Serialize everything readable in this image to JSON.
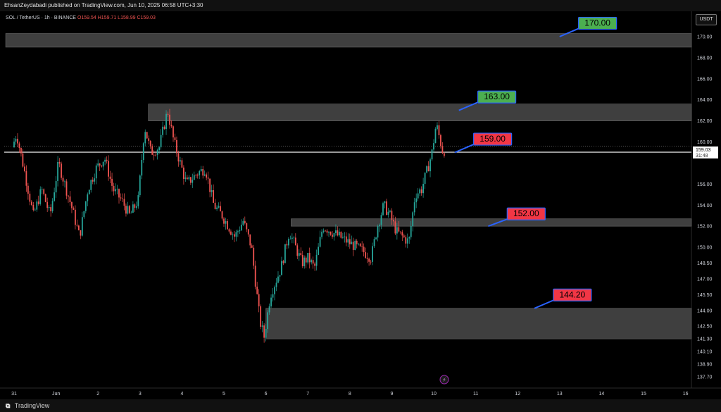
{
  "header": {
    "author_line": "EhsanZeydabadi published on TradingView.com, Jun 10, 2025 06:58 UTC+3:30"
  },
  "legend": {
    "symbol": "SOL / TetherUS · 1h · BINANCE",
    "open": "O159.54",
    "high": "H159.71",
    "low": "L158.99",
    "close": "C159.03"
  },
  "currency": "USDT",
  "footer": {
    "brand": "TradingView"
  },
  "colors": {
    "up": "#26a69a",
    "down": "#ef5350",
    "zone": "#4a4a4a",
    "label_green": "#4caf50",
    "label_red": "#f23645",
    "pointer": "#2962ff"
  },
  "chart_data": {
    "type": "candlestick",
    "title": "",
    "xlabel": "",
    "ylabel": "",
    "ylim": [
      136.5,
      172.0
    ],
    "y_ticks": [
      170.0,
      168.0,
      166.0,
      164.0,
      162.0,
      160.0,
      156.0,
      154.0,
      152.0,
      150.0,
      148.5,
      147.0,
      145.5,
      144.0,
      142.5,
      141.3,
      140.1,
      138.9,
      137.7
    ],
    "x_ticks": [
      {
        "label": "31",
        "day": 0
      },
      {
        "label": "Jun",
        "day": 1
      },
      {
        "label": "2",
        "day": 2
      },
      {
        "label": "3",
        "day": 3
      },
      {
        "label": "4",
        "day": 4
      },
      {
        "label": "5",
        "day": 5
      },
      {
        "label": "6",
        "day": 6
      },
      {
        "label": "7",
        "day": 7
      },
      {
        "label": "8",
        "day": 8
      },
      {
        "label": "9",
        "day": 9
      },
      {
        "label": "10",
        "day": 10
      },
      {
        "label": "11",
        "day": 11
      },
      {
        "label": "12",
        "day": 12
      },
      {
        "label": "13",
        "day": 13
      },
      {
        "label": "14",
        "day": 14
      },
      {
        "label": "15",
        "day": 15
      },
      {
        "label": "16",
        "day": 16
      }
    ],
    "price_path": [
      [
        0.0,
        159.5
      ],
      [
        0.1,
        160.8
      ],
      [
        0.3,
        157.0
      ],
      [
        0.5,
        153.0
      ],
      [
        0.7,
        155.5
      ],
      [
        0.9,
        153.0
      ],
      [
        1.1,
        158.0
      ],
      [
        1.4,
        154.0
      ],
      [
        1.6,
        151.0
      ],
      [
        1.8,
        155.5
      ],
      [
        2.0,
        157.5
      ],
      [
        2.2,
        158.5
      ],
      [
        2.4,
        155.5
      ],
      [
        2.6,
        154.5
      ],
      [
        2.8,
        153.0
      ],
      [
        3.0,
        154.5
      ],
      [
        3.15,
        161.5
      ],
      [
        3.3,
        159.0
      ],
      [
        3.5,
        159.5
      ],
      [
        3.7,
        163.0
      ],
      [
        3.85,
        160.0
      ],
      [
        4.0,
        158.0
      ],
      [
        4.15,
        156.0
      ],
      [
        4.4,
        157.0
      ],
      [
        4.6,
        157.5
      ],
      [
        4.8,
        154.0
      ],
      [
        5.0,
        153.0
      ],
      [
        5.3,
        151.0
      ],
      [
        5.5,
        152.5
      ],
      [
        5.7,
        150.0
      ],
      [
        5.9,
        143.0
      ],
      [
        6.0,
        141.5
      ],
      [
        6.15,
        145.5
      ],
      [
        6.4,
        148.0
      ],
      [
        6.6,
        151.5
      ],
      [
        6.75,
        150.0
      ],
      [
        6.9,
        148.5
      ],
      [
        7.05,
        149.0
      ],
      [
        7.2,
        148.0
      ],
      [
        7.4,
        152.0
      ],
      [
        7.6,
        151.5
      ],
      [
        7.8,
        151.0
      ],
      [
        8.0,
        150.5
      ],
      [
        8.2,
        150.0
      ],
      [
        8.4,
        149.5
      ],
      [
        8.55,
        149.0
      ],
      [
        8.7,
        152.0
      ],
      [
        8.85,
        154.0
      ],
      [
        9.0,
        153.0
      ],
      [
        9.15,
        151.5
      ],
      [
        9.3,
        151.0
      ],
      [
        9.45,
        150.5
      ],
      [
        9.6,
        155.0
      ],
      [
        9.75,
        155.5
      ],
      [
        9.9,
        157.5
      ],
      [
        10.0,
        159.0
      ],
      [
        10.1,
        161.7
      ],
      [
        10.25,
        159.2
      ]
    ],
    "zones": [
      {
        "name": "zone-170",
        "from": 169.0,
        "to": 170.3,
        "day_start": -0.2,
        "day_end": 16.4
      },
      {
        "name": "zone-163",
        "from": 162.0,
        "to": 163.6,
        "day_start": 3.2,
        "day_end": 16.4
      },
      {
        "name": "zone-152",
        "from": 152.0,
        "to": 152.7,
        "day_start": 6.6,
        "day_end": 16.4
      },
      {
        "name": "zone-144",
        "from": 141.3,
        "to": 144.2,
        "day_start": 6.0,
        "day_end": 16.4
      }
    ],
    "current_price": {
      "value": 159.03,
      "label": "159.03",
      "countdown": "31:48"
    },
    "annotations": [
      {
        "text": "170.00",
        "price": 170.0,
        "day": 13.0,
        "color": "green",
        "box_day": 13.45,
        "box_price": 171.3
      },
      {
        "text": "163.00",
        "price": 163.0,
        "day": 10.6,
        "color": "green",
        "box_day": 11.05,
        "box_price": 164.3
      },
      {
        "text": "159.00",
        "price": 159.0,
        "day": 10.5,
        "color": "red",
        "box_day": 10.95,
        "box_price": 160.3
      },
      {
        "text": "152.00",
        "price": 152.0,
        "day": 11.3,
        "color": "red",
        "box_day": 11.75,
        "box_price": 153.2
      },
      {
        "text": "144.20",
        "price": 144.2,
        "day": 12.4,
        "color": "red",
        "box_day": 12.85,
        "box_price": 145.5
      }
    ]
  }
}
